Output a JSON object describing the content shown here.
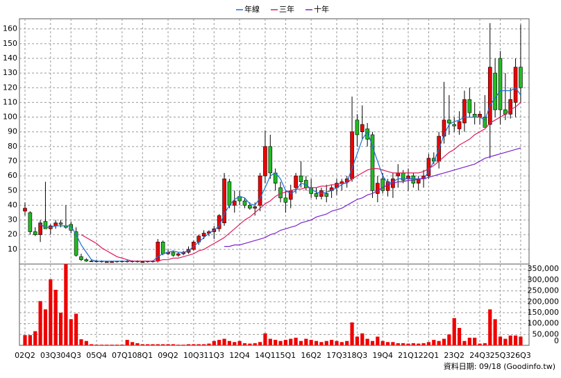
{
  "chart_data": [
    {
      "type": "candlestick",
      "categories": [
        "02Q2",
        null,
        null,
        null,
        null,
        "03Q3",
        null,
        null,
        null,
        "04Q3",
        null,
        null,
        null,
        null,
        "05Q4",
        null,
        null,
        null,
        null,
        "07Q1",
        null,
        null,
        null,
        "08Q1",
        null,
        null,
        null,
        null,
        "09Q2",
        null,
        null,
        null,
        null,
        "10Q3",
        null,
        null,
        null,
        "11Q3",
        null,
        null,
        null,
        null,
        "12Q4",
        null,
        null,
        null,
        null,
        "14Q1",
        null,
        null,
        null,
        "15Q1",
        null,
        null,
        null,
        null,
        "16Q2",
        null,
        null,
        null,
        null,
        "17Q3",
        null,
        null,
        null,
        "18Q3",
        null,
        null,
        null,
        null,
        "19Q4",
        null,
        null,
        null,
        null,
        "21Q1",
        null,
        null,
        null,
        "22Q1",
        null,
        null,
        null,
        null,
        "23Q2",
        null,
        null,
        null,
        null,
        "24Q3",
        null,
        null,
        null,
        "25Q3",
        null,
        null,
        null,
        "26Q3"
      ],
      "open": [
        36,
        35,
        22,
        20,
        29,
        24,
        26,
        28,
        26,
        27,
        22,
        5,
        3,
        2,
        2,
        2,
        1.5,
        1.5,
        1.5,
        2,
        2,
        2,
        2,
        1.5,
        1.5,
        2,
        2,
        15,
        7,
        8,
        6,
        7,
        8,
        10,
        15,
        19,
        21,
        22,
        24,
        28,
        56,
        40,
        46,
        43,
        40,
        38,
        40,
        60,
        80,
        62,
        52,
        45,
        44,
        52,
        60,
        57,
        52,
        48,
        46,
        48,
        50,
        52,
        55,
        56,
        58,
        98,
        90,
        92,
        88,
        48,
        58,
        50,
        52,
        60,
        62,
        58,
        60,
        55,
        58,
        60,
        72,
        70,
        87,
        98,
        95,
        92,
        96,
        112,
        102,
        100,
        100,
        95,
        130,
        140,
        105,
        102,
        110,
        134
      ],
      "high": [
        42,
        36,
        25,
        30,
        56,
        27,
        30,
        30,
        40,
        29,
        25,
        7,
        4,
        3,
        3,
        2.5,
        2,
        2,
        2,
        2.5,
        3,
        2.5,
        2.5,
        2,
        2,
        2.5,
        17,
        16,
        10,
        9,
        8,
        9,
        12,
        16,
        20,
        23,
        23,
        26,
        34,
        62,
        58,
        50,
        50,
        45,
        42,
        42,
        62,
        91,
        88,
        65,
        56,
        50,
        54,
        62,
        70,
        60,
        58,
        52,
        52,
        54,
        54,
        58,
        58,
        60,
        114,
        102,
        108,
        96,
        90,
        60,
        62,
        58,
        62,
        68,
        64,
        65,
        62,
        60,
        64,
        75,
        76,
        90,
        124,
        115,
        100,
        104,
        118,
        120,
        110,
        104,
        115,
        164,
        140,
        145,
        130,
        120,
        140,
        163
      ],
      "low": [
        33,
        20,
        19,
        15,
        24,
        20,
        24,
        25,
        24,
        21,
        5,
        2,
        1.5,
        1.5,
        1,
        1,
        1,
        1,
        1,
        1,
        1,
        1,
        1,
        1,
        1,
        1,
        1,
        6,
        6,
        5,
        5,
        6,
        7,
        9,
        13,
        17,
        19,
        17,
        22,
        26,
        38,
        35,
        40,
        38,
        37,
        33,
        36,
        55,
        58,
        50,
        42,
        35,
        38,
        48,
        52,
        50,
        45,
        44,
        44,
        42,
        45,
        47,
        50,
        52,
        56,
        80,
        85,
        80,
        45,
        42,
        48,
        46,
        45,
        52,
        55,
        50,
        52,
        50,
        52,
        58,
        68,
        65,
        82,
        88,
        90,
        88,
        90,
        100,
        95,
        95,
        94,
        72,
        100,
        95,
        98,
        99,
        100,
        110
      ],
      "close": [
        38,
        22,
        20,
        28,
        24,
        26,
        28,
        27,
        25,
        23,
        6,
        3,
        2,
        2,
        2,
        1.5,
        1.5,
        1.5,
        2,
        2,
        2,
        2,
        1.5,
        1.5,
        2,
        2,
        15,
        7,
        8,
        6,
        7,
        8,
        10,
        15,
        19,
        21,
        22,
        24,
        33,
        58,
        40,
        43,
        43,
        40,
        38,
        39,
        60,
        80,
        62,
        55,
        45,
        42,
        50,
        60,
        56,
        52,
        48,
        46,
        50,
        46,
        52,
        55,
        56,
        58,
        90,
        88,
        95,
        85,
        50,
        55,
        50,
        56,
        58,
        62,
        57,
        60,
        55,
        58,
        60,
        72,
        70,
        87,
        98,
        96,
        94,
        97,
        112,
        103,
        100,
        102,
        93,
        134,
        105,
        105,
        102,
        112,
        134,
        120
      ],
      "up_color": "#ee0000",
      "down_color": "#22bb22",
      "series": [
        {
          "name": "年線",
          "color": "#1a6fd6",
          "values": [
            null,
            null,
            null,
            27,
            25,
            25,
            26,
            26,
            26,
            26,
            20,
            13,
            8,
            3,
            2,
            2,
            2,
            2,
            2,
            2,
            2,
            2,
            2,
            2,
            2,
            2,
            5,
            7,
            8,
            9,
            8,
            8,
            9,
            12,
            15,
            18,
            21,
            23,
            26,
            34,
            40,
            44,
            46,
            45,
            41,
            40,
            45,
            52,
            60,
            62,
            58,
            50,
            48,
            50,
            55,
            54,
            51,
            49,
            48,
            49,
            50,
            52,
            54,
            56,
            65,
            75,
            85,
            90,
            80,
            70,
            60,
            55,
            56,
            58,
            58,
            58,
            58,
            58,
            58,
            63,
            70,
            78,
            88,
            95,
            97,
            98,
            100,
            100,
            100,
            100,
            98,
            108,
            113,
            118,
            118,
            118,
            120,
            115
          ]
        },
        {
          "name": "三年",
          "color": "#e0195a",
          "values": [
            null,
            null,
            null,
            null,
            null,
            null,
            null,
            null,
            null,
            null,
            null,
            20,
            18,
            16,
            14,
            11,
            9,
            7,
            5,
            4,
            3,
            2,
            2,
            2,
            2,
            2,
            2,
            3,
            3,
            4,
            4,
            5,
            6,
            7,
            9,
            10,
            12,
            14,
            16,
            18,
            21,
            24,
            27,
            30,
            32,
            35,
            38,
            41,
            43,
            46,
            48,
            49,
            50,
            51,
            51,
            52,
            52,
            52,
            53,
            53,
            54,
            54,
            55,
            55,
            58,
            60,
            62,
            64,
            65,
            65,
            64,
            63,
            62,
            62,
            62,
            62,
            62,
            62,
            63,
            65,
            67,
            70,
            73,
            76,
            78,
            81,
            83,
            85,
            88,
            90,
            92,
            96,
            98,
            100,
            102,
            105,
            107,
            110
          ]
        },
        {
          "name": "十年",
          "color": "#7a22d0",
          "values": [
            null,
            null,
            null,
            null,
            null,
            null,
            null,
            null,
            null,
            null,
            null,
            null,
            null,
            null,
            null,
            null,
            null,
            null,
            null,
            null,
            null,
            null,
            null,
            null,
            null,
            null,
            null,
            null,
            null,
            null,
            null,
            null,
            null,
            null,
            null,
            null,
            null,
            null,
            null,
            12,
            12,
            13,
            13,
            14,
            15,
            16,
            17,
            18,
            20,
            21,
            23,
            24,
            25,
            26,
            28,
            29,
            30,
            32,
            33,
            34,
            36,
            37,
            38,
            40,
            42,
            44,
            45,
            47,
            48,
            50,
            52,
            54,
            55,
            56,
            56,
            57,
            57,
            58,
            58,
            59,
            60,
            61,
            62,
            63,
            64,
            65,
            66,
            67,
            68,
            70,
            72,
            73,
            74,
            75,
            76,
            77,
            78,
            79
          ]
        }
      ],
      "ylim": [
        0,
        166
      ],
      "yticks": [
        10,
        20,
        30,
        40,
        50,
        60,
        70,
        80,
        90,
        100,
        110,
        120,
        130,
        140,
        150,
        160
      ],
      "grid": true,
      "legend": "top"
    },
    {
      "type": "bar",
      "color": "#ee0000",
      "values": [
        47000,
        47000,
        65000,
        203000,
        165000,
        303000,
        255000,
        150000,
        372000,
        120000,
        145000,
        28000,
        20000,
        5000,
        3000,
        3000,
        3000,
        3000,
        3000,
        3000,
        25000,
        15000,
        10000,
        5000,
        5000,
        5000,
        5000,
        5000,
        5000,
        5000,
        3000,
        3000,
        5000,
        5000,
        5000,
        5000,
        8000,
        20000,
        25000,
        30000,
        20000,
        15000,
        20000,
        10000,
        8000,
        10000,
        15000,
        55000,
        30000,
        25000,
        20000,
        25000,
        30000,
        35000,
        20000,
        30000,
        25000,
        20000,
        15000,
        20000,
        25000,
        20000,
        15000,
        20000,
        105000,
        40000,
        55000,
        30000,
        20000,
        40000,
        20000,
        15000,
        15000,
        10000,
        10000,
        8000,
        10000,
        8000,
        10000,
        15000,
        25000,
        20000,
        30000,
        50000,
        125000,
        80000,
        20000,
        35000,
        35000,
        8000,
        10000,
        165000,
        120000,
        40000,
        30000,
        45000,
        45000,
        40000
      ],
      "ylim": [
        0,
        373000
      ],
      "yticks": [
        0,
        {
          "value": 50000,
          "label": "50,000"
        },
        {
          "value": 100000,
          "label": "100,000"
        },
        {
          "value": 150000,
          "label": "150,000"
        },
        {
          "value": 200000,
          "label": "200,000"
        },
        {
          "value": 250000,
          "label": "250,000"
        },
        {
          "value": 300000,
          "label": "300,000"
        },
        {
          "value": 350000,
          "label": "350,000"
        }
      ],
      "grid": true,
      "source": "資料日期: 09/18  (Goodinfo.tw)"
    }
  ]
}
